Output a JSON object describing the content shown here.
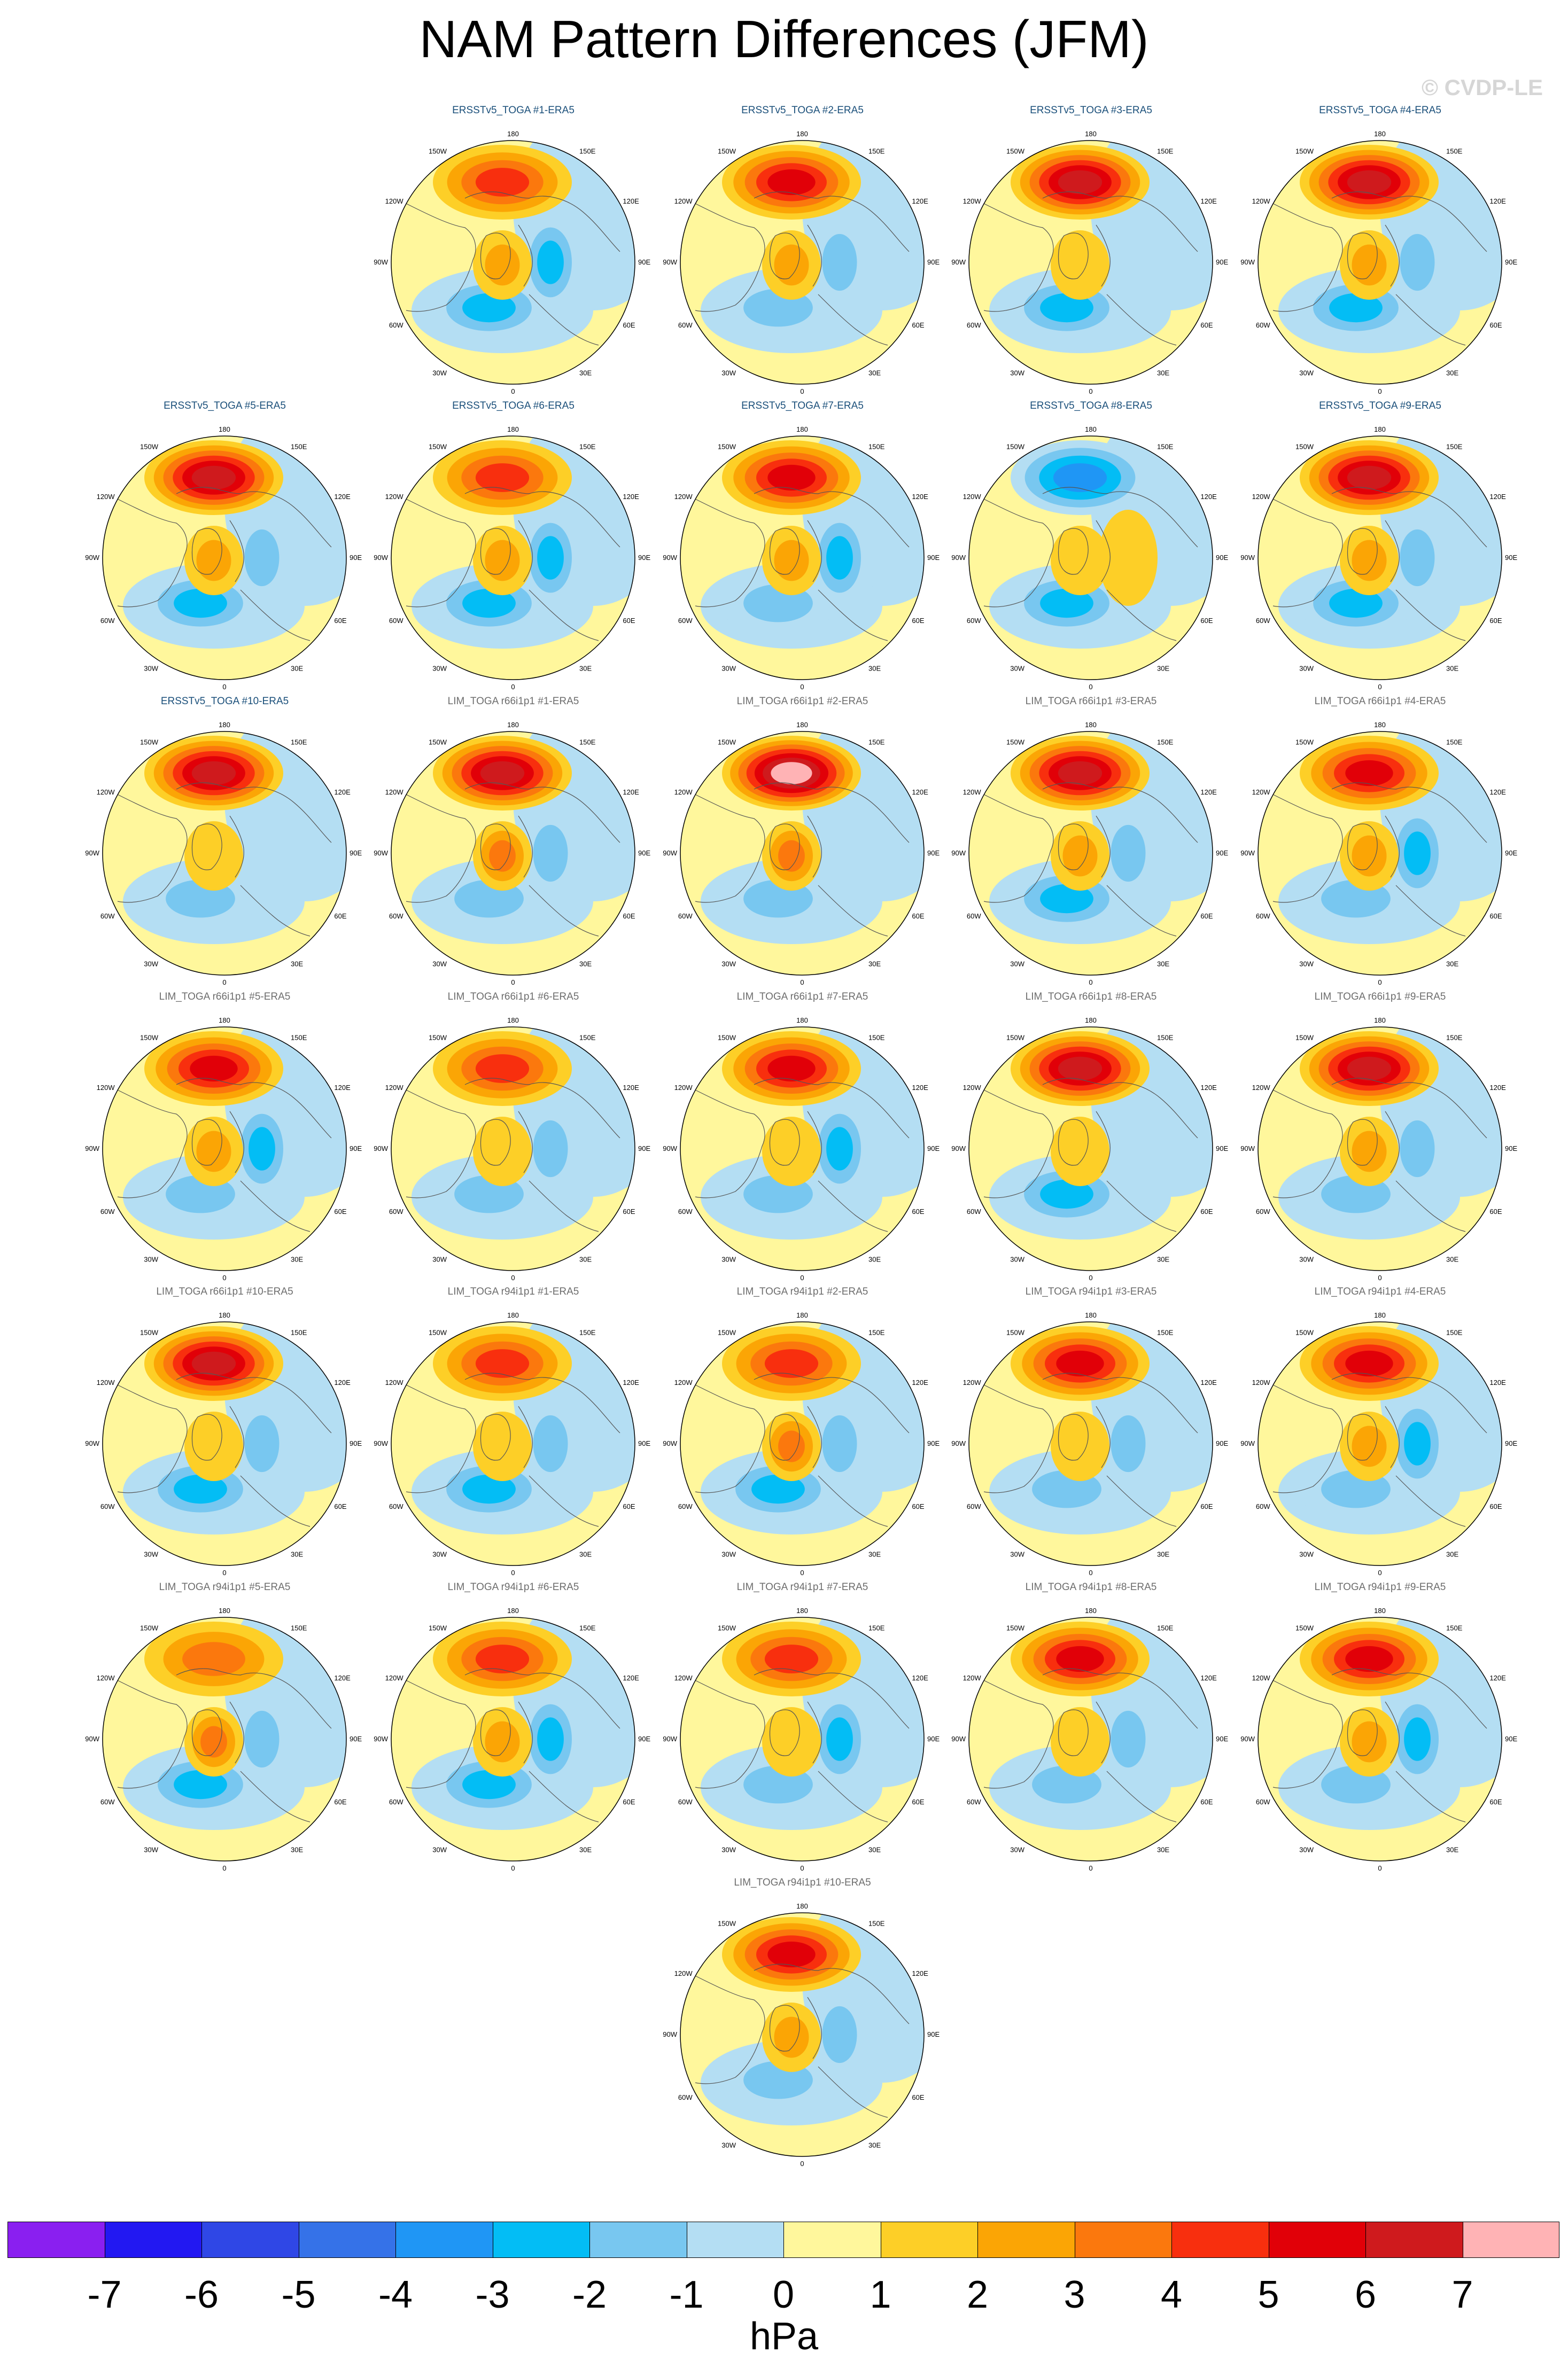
{
  "title": "NAM Pattern Differences (JFM)",
  "watermark": "© CVDP-LE",
  "units": "hPa",
  "legend": {
    "ticks": [
      "-7",
      "-6",
      "-5",
      "-4",
      "-3",
      "-2",
      "-1",
      "0",
      "1",
      "2",
      "3",
      "4",
      "5",
      "6",
      "7"
    ],
    "colors": [
      "#8a1ff0",
      "#2218f2",
      "#2f47e6",
      "#3572e8",
      "#1f96f5",
      "#03bdf5",
      "#78c7f0",
      "#b4def3",
      "#fff79c",
      "#fdcf27",
      "#fba505",
      "#fb780d",
      "#f82f0e",
      "#e10008",
      "#cf1a1d",
      "#ffb3b5"
    ]
  },
  "map_labels": {
    "top": "180",
    "bottom": "0",
    "upper_left": "150W",
    "upper_right": "150E",
    "mid_upper_left": "120W",
    "mid_upper_right": "120E",
    "left": "90W",
    "right": "90E",
    "mid_lower_left": "60W",
    "mid_lower_right": "60E",
    "lower_left": "30W",
    "lower_right": "30E"
  },
  "panels": [
    {
      "title": "ERSSTv5_TOGA #1-ERA5",
      "group": "ersst",
      "pac": 4,
      "atl": -3,
      "eur": -3,
      "arc": 2
    },
    {
      "title": "ERSSTv5_TOGA #2-ERA5",
      "group": "ersst",
      "pac": 5,
      "atl": -2,
      "eur": -2,
      "arc": 2
    },
    {
      "title": "ERSSTv5_TOGA #3-ERA5",
      "group": "ersst",
      "pac": 6,
      "atl": -3,
      "eur": -1,
      "arc": 1
    },
    {
      "title": "ERSSTv5_TOGA #4-ERA5",
      "group": "ersst",
      "pac": 6,
      "atl": -3,
      "eur": -2,
      "arc": 2
    },
    {
      "title": "ERSSTv5_TOGA #5-ERA5",
      "group": "ersst",
      "pac": 6,
      "atl": -3,
      "eur": -2,
      "arc": 2
    },
    {
      "title": "ERSSTv5_TOGA #6-ERA5",
      "group": "ersst",
      "pac": 4,
      "atl": -3,
      "eur": -3,
      "arc": 2
    },
    {
      "title": "ERSSTv5_TOGA #7-ERA5",
      "group": "ersst",
      "pac": 5,
      "atl": -2,
      "eur": -3,
      "arc": 2
    },
    {
      "title": "ERSSTv5_TOGA #8-ERA5",
      "group": "ersst",
      "pac": -4,
      "atl": -3,
      "eur": 1,
      "arc": 1
    },
    {
      "title": "ERSSTv5_TOGA #9-ERA5",
      "group": "ersst",
      "pac": 6,
      "atl": -3,
      "eur": -2,
      "arc": 2
    },
    {
      "title": "ERSSTv5_TOGA #10-ERA5",
      "group": "ersst",
      "pac": 6,
      "atl": -2,
      "eur": -1,
      "arc": 1
    },
    {
      "title": "LIM_TOGA r66i1p1 #1-ERA5",
      "group": "lim",
      "pac": 6,
      "atl": -2,
      "eur": -2,
      "arc": 3
    },
    {
      "title": "LIM_TOGA r66i1p1 #2-ERA5",
      "group": "lim",
      "pac": 7,
      "atl": -2,
      "eur": -1,
      "arc": 3
    },
    {
      "title": "LIM_TOGA r66i1p1 #3-ERA5",
      "group": "lim",
      "pac": 6,
      "atl": -3,
      "eur": -2,
      "arc": 2
    },
    {
      "title": "LIM_TOGA r66i1p1 #4-ERA5",
      "group": "lim",
      "pac": 5,
      "atl": -2,
      "eur": -3,
      "arc": 2
    },
    {
      "title": "LIM_TOGA r66i1p1 #5-ERA5",
      "group": "lim",
      "pac": 5,
      "atl": -2,
      "eur": -3,
      "arc": 2
    },
    {
      "title": "LIM_TOGA r66i1p1 #6-ERA5",
      "group": "lim",
      "pac": 4,
      "atl": -2,
      "eur": -2,
      "arc": 1
    },
    {
      "title": "LIM_TOGA r66i1p1 #7-ERA5",
      "group": "lim",
      "pac": 5,
      "atl": -2,
      "eur": -3,
      "arc": 1
    },
    {
      "title": "LIM_TOGA r66i1p1 #8-ERA5",
      "group": "lim",
      "pac": 6,
      "atl": -3,
      "eur": -1,
      "arc": 1
    },
    {
      "title": "LIM_TOGA r66i1p1 #9-ERA5",
      "group": "lim",
      "pac": 6,
      "atl": -2,
      "eur": -2,
      "arc": 2
    },
    {
      "title": "LIM_TOGA r66i1p1 #10-ERA5",
      "group": "lim",
      "pac": 6,
      "atl": -3,
      "eur": -2,
      "arc": 1
    },
    {
      "title": "LIM_TOGA r94i1p1 #1-ERA5",
      "group": "lim",
      "pac": 4,
      "atl": -3,
      "eur": -2,
      "arc": 1
    },
    {
      "title": "LIM_TOGA r94i1p1 #2-ERA5",
      "group": "lim",
      "pac": 4,
      "atl": -3,
      "eur": -2,
      "arc": 3
    },
    {
      "title": "LIM_TOGA r94i1p1 #3-ERA5",
      "group": "lim",
      "pac": 5,
      "atl": -2,
      "eur": -2,
      "arc": 1
    },
    {
      "title": "LIM_TOGA r94i1p1 #4-ERA5",
      "group": "lim",
      "pac": 5,
      "atl": -2,
      "eur": -3,
      "arc": 2
    },
    {
      "title": "LIM_TOGA r94i1p1 #5-ERA5",
      "group": "lim",
      "pac": 3,
      "atl": -3,
      "eur": -2,
      "arc": 3
    },
    {
      "title": "LIM_TOGA r94i1p1 #6-ERA5",
      "group": "lim",
      "pac": 4,
      "atl": -3,
      "eur": -3,
      "arc": 2
    },
    {
      "title": "LIM_TOGA r94i1p1 #7-ERA5",
      "group": "lim",
      "pac": 4,
      "atl": -2,
      "eur": -3,
      "arc": 1
    },
    {
      "title": "LIM_TOGA r94i1p1 #8-ERA5",
      "group": "lim",
      "pac": 5,
      "atl": -2,
      "eur": -2,
      "arc": 1
    },
    {
      "title": "LIM_TOGA r94i1p1 #9-ERA5",
      "group": "lim",
      "pac": 5,
      "atl": -2,
      "eur": -3,
      "arc": 2
    },
    {
      "title": "LIM_TOGA r94i1p1 #10-ERA5",
      "group": "lim",
      "pac": 5,
      "atl": -2,
      "eur": -2,
      "arc": 2
    }
  ]
}
